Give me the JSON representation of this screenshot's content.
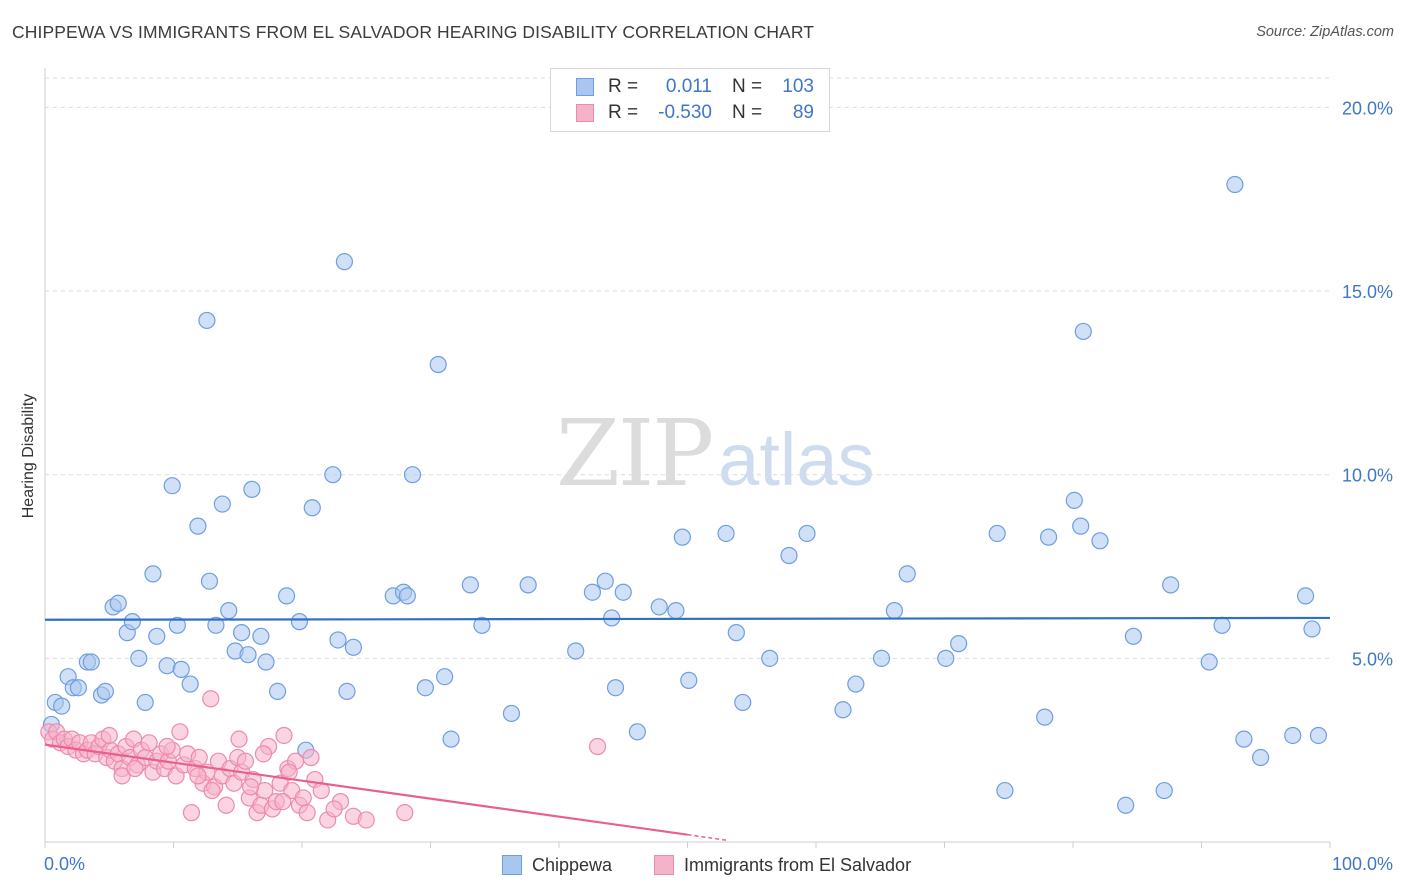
{
  "header": {
    "title": "CHIPPEWA VS IMMIGRANTS FROM EL SALVADOR HEARING DISABILITY CORRELATION CHART",
    "source": "Source: ZipAtlas.com"
  },
  "watermark": {
    "part1": "ZIP",
    "part2": "atlas"
  },
  "legend": {
    "series1": {
      "r_label": "R =",
      "r_value": "0.011",
      "n_label": "N =",
      "n_value": "103"
    },
    "series2": {
      "r_label": "R =",
      "r_value": "-0.530",
      "n_label": "N =",
      "n_value": "89"
    }
  },
  "colors": {
    "blue_fill": "#a9c6ee",
    "blue_stroke": "#6f9ee0",
    "blue_line": "#2f6fc6",
    "pink_fill": "#f5b3c9",
    "pink_stroke": "#ee8aab",
    "pink_line": "#e8608e",
    "axis_text": "#3f77c8",
    "grid": "#dcdcdc"
  },
  "chart_data": {
    "type": "scatter",
    "title": "CHIPPEWA VS IMMIGRANTS FROM EL SALVADOR HEARING DISABILITY CORRELATION CHART",
    "xlabel": "",
    "ylabel": "Hearing Disability",
    "xlim": [
      0,
      100
    ],
    "ylim": [
      0,
      20.8
    ],
    "x_tick_labels": [
      "0.0%",
      "100.0%"
    ],
    "y_ticks": [
      5,
      10,
      15,
      20
    ],
    "y_tick_labels": [
      "5.0%",
      "10.0%",
      "15.0%",
      "20.0%"
    ],
    "grid": true,
    "series": [
      {
        "name": "Chippewa",
        "color": "blue",
        "trend": {
          "x": [
            0,
            100
          ],
          "y": [
            6.05,
            6.1
          ]
        },
        "points": [
          [
            0.5,
            3.2
          ],
          [
            0.8,
            3.8
          ],
          [
            1.3,
            3.7
          ],
          [
            1.8,
            4.5
          ],
          [
            2.2,
            4.2
          ],
          [
            2.6,
            4.2
          ],
          [
            3.3,
            4.9
          ],
          [
            3.6,
            4.9
          ],
          [
            4.4,
            4.0
          ],
          [
            4.7,
            4.1
          ],
          [
            5.3,
            6.4
          ],
          [
            5.7,
            6.5
          ],
          [
            6.4,
            5.7
          ],
          [
            6.8,
            6.0
          ],
          [
            7.3,
            5.0
          ],
          [
            7.8,
            3.8
          ],
          [
            8.4,
            7.3
          ],
          [
            8.7,
            5.6
          ],
          [
            9.5,
            4.8
          ],
          [
            9.9,
            9.7
          ],
          [
            10.3,
            5.9
          ],
          [
            10.6,
            4.7
          ],
          [
            11.3,
            4.3
          ],
          [
            11.9,
            8.6
          ],
          [
            12.6,
            14.2
          ],
          [
            12.8,
            7.1
          ],
          [
            13.3,
            5.9
          ],
          [
            13.8,
            9.2
          ],
          [
            14.3,
            6.3
          ],
          [
            14.8,
            5.2
          ],
          [
            15.3,
            5.7
          ],
          [
            15.8,
            5.1
          ],
          [
            16.1,
            9.6
          ],
          [
            16.8,
            5.6
          ],
          [
            17.2,
            4.9
          ],
          [
            18.1,
            4.1
          ],
          [
            18.8,
            6.7
          ],
          [
            19.8,
            6.0
          ],
          [
            20.3,
            2.5
          ],
          [
            20.8,
            9.1
          ],
          [
            22.4,
            10.0
          ],
          [
            22.8,
            5.5
          ],
          [
            23.3,
            15.8
          ],
          [
            23.5,
            4.1
          ],
          [
            24.0,
            5.3
          ],
          [
            27.1,
            6.7
          ],
          [
            27.9,
            6.8
          ],
          [
            28.2,
            6.7
          ],
          [
            28.6,
            10.0
          ],
          [
            29.6,
            4.2
          ],
          [
            30.6,
            13.0
          ],
          [
            31.1,
            4.5
          ],
          [
            31.6,
            2.8
          ],
          [
            33.1,
            7.0
          ],
          [
            34.0,
            5.9
          ],
          [
            36.3,
            3.5
          ],
          [
            37.6,
            7.0
          ],
          [
            41.3,
            5.2
          ],
          [
            42.6,
            6.8
          ],
          [
            43.6,
            7.1
          ],
          [
            44.1,
            6.1
          ],
          [
            44.4,
            4.2
          ],
          [
            45.0,
            6.8
          ],
          [
            46.1,
            3.0
          ],
          [
            47.8,
            6.4
          ],
          [
            49.1,
            6.3
          ],
          [
            49.6,
            8.3
          ],
          [
            50.1,
            4.4
          ],
          [
            53.0,
            8.4
          ],
          [
            53.8,
            5.7
          ],
          [
            54.3,
            3.8
          ],
          [
            56.4,
            5.0
          ],
          [
            57.9,
            7.8
          ],
          [
            59.3,
            8.4
          ],
          [
            62.1,
            3.6
          ],
          [
            63.1,
            4.3
          ],
          [
            65.1,
            5.0
          ],
          [
            66.1,
            6.3
          ],
          [
            67.1,
            7.3
          ],
          [
            70.1,
            5.0
          ],
          [
            71.1,
            5.4
          ],
          [
            74.1,
            8.4
          ],
          [
            74.7,
            1.4
          ],
          [
            77.8,
            3.4
          ],
          [
            78.1,
            8.3
          ],
          [
            80.1,
            9.3
          ],
          [
            80.6,
            8.6
          ],
          [
            80.8,
            13.9
          ],
          [
            82.1,
            8.2
          ],
          [
            84.1,
            1.0
          ],
          [
            84.7,
            5.6
          ],
          [
            87.1,
            1.4
          ],
          [
            87.6,
            7.0
          ],
          [
            90.6,
            4.9
          ],
          [
            91.6,
            5.9
          ],
          [
            92.6,
            17.9
          ],
          [
            93.3,
            2.8
          ],
          [
            94.6,
            2.3
          ],
          [
            97.1,
            2.9
          ],
          [
            98.1,
            6.7
          ],
          [
            98.6,
            5.8
          ],
          [
            99.1,
            2.9
          ]
        ]
      },
      {
        "name": "Immigrants from El Salvador",
        "color": "pink",
        "trend": {
          "x": [
            0,
            50
          ],
          "y": [
            2.65,
            0.2
          ]
        },
        "trend_dashed": {
          "x": [
            50,
            53
          ],
          "y": [
            0.2,
            0.05
          ]
        },
        "points": [
          [
            0.3,
            3.0
          ],
          [
            0.6,
            2.8
          ],
          [
            0.9,
            3.0
          ],
          [
            1.2,
            2.7
          ],
          [
            1.5,
            2.8
          ],
          [
            1.8,
            2.6
          ],
          [
            2.1,
            2.8
          ],
          [
            2.4,
            2.5
          ],
          [
            2.7,
            2.7
          ],
          [
            3.0,
            2.4
          ],
          [
            3.3,
            2.5
          ],
          [
            3.6,
            2.7
          ],
          [
            3.9,
            2.4
          ],
          [
            4.2,
            2.6
          ],
          [
            4.5,
            2.8
          ],
          [
            4.8,
            2.3
          ],
          [
            5.1,
            2.5
          ],
          [
            5.4,
            2.2
          ],
          [
            5.7,
            2.4
          ],
          [
            6.0,
            2.0
          ],
          [
            6.3,
            2.6
          ],
          [
            6.6,
            2.3
          ],
          [
            6.9,
            2.8
          ],
          [
            7.2,
            2.1
          ],
          [
            7.5,
            2.5
          ],
          [
            7.8,
            2.3
          ],
          [
            8.1,
            2.7
          ],
          [
            8.4,
            1.9
          ],
          [
            8.7,
            2.2
          ],
          [
            9.0,
            2.4
          ],
          [
            9.3,
            2.0
          ],
          [
            9.6,
            2.2
          ],
          [
            9.9,
            2.5
          ],
          [
            10.2,
            1.8
          ],
          [
            10.5,
            3.0
          ],
          [
            10.8,
            2.1
          ],
          [
            11.1,
            2.4
          ],
          [
            11.4,
            0.8
          ],
          [
            11.7,
            2.0
          ],
          [
            12.0,
            2.3
          ],
          [
            12.3,
            1.6
          ],
          [
            12.6,
            1.9
          ],
          [
            12.9,
            3.9
          ],
          [
            13.2,
            1.5
          ],
          [
            13.5,
            2.2
          ],
          [
            13.8,
            1.8
          ],
          [
            14.1,
            1.0
          ],
          [
            14.4,
            2.0
          ],
          [
            14.7,
            1.6
          ],
          [
            15.0,
            2.3
          ],
          [
            15.3,
            1.9
          ],
          [
            15.6,
            2.2
          ],
          [
            15.9,
            1.2
          ],
          [
            16.2,
            1.7
          ],
          [
            16.5,
            0.8
          ],
          [
            16.8,
            1.0
          ],
          [
            17.1,
            1.4
          ],
          [
            17.4,
            2.6
          ],
          [
            17.7,
            0.9
          ],
          [
            18.0,
            1.1
          ],
          [
            18.3,
            1.6
          ],
          [
            18.6,
            2.9
          ],
          [
            18.9,
            2.0
          ],
          [
            19.2,
            1.4
          ],
          [
            19.5,
            2.2
          ],
          [
            19.8,
            1.0
          ],
          [
            20.1,
            1.2
          ],
          [
            20.4,
            0.8
          ],
          [
            20.7,
            2.3
          ],
          [
            21.0,
            1.7
          ],
          [
            22.0,
            0.6
          ],
          [
            23.0,
            1.1
          ],
          [
            24.0,
            0.7
          ],
          [
            25.0,
            0.6
          ],
          [
            28.0,
            0.8
          ],
          [
            43.0,
            2.6
          ],
          [
            6.0,
            1.8
          ],
          [
            7.0,
            2.0
          ],
          [
            9.5,
            2.6
          ],
          [
            11.9,
            1.8
          ],
          [
            13.0,
            1.4
          ],
          [
            15.1,
            2.8
          ],
          [
            16.0,
            1.5
          ],
          [
            17.0,
            2.4
          ],
          [
            18.5,
            1.1
          ],
          [
            19.0,
            1.9
          ],
          [
            21.5,
            1.4
          ],
          [
            22.5,
            0.9
          ],
          [
            5.0,
            2.9
          ]
        ]
      }
    ]
  },
  "bottom_legend": {
    "items": [
      {
        "label": "Chippewa"
      },
      {
        "label": "Immigrants from El Salvador"
      }
    ]
  }
}
